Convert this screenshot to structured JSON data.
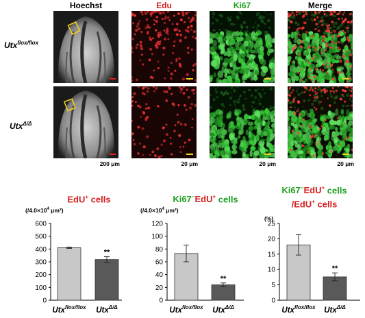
{
  "figure": {
    "columns": [
      "Hoechst",
      "Edu",
      "Ki67",
      "Merge"
    ],
    "column_colors": [
      "#000000",
      "#d62020",
      "#1fa01f",
      "#000000"
    ],
    "row_labels": [
      {
        "base": "Utx",
        "sup": "flox/flox"
      },
      {
        "base": "Utx",
        "sup": "Δ/Δ"
      }
    ],
    "scale_labels": [
      "200 μm",
      "20 μm",
      "20 μm",
      "20 μm"
    ]
  },
  "chart_data": [
    {
      "type": "bar",
      "title": {
        "prefix": "EdU",
        "sup": "+",
        "suffix": " cells"
      },
      "ylabel": {
        "text": "(/4.0×10",
        "sup": "4",
        "tail": " μm²)"
      },
      "categories": [
        {
          "base": "Utx",
          "sup": "flox/flox"
        },
        {
          "base": "Utx",
          "sup": "Δ/Δ"
        }
      ],
      "values": [
        410,
        318
      ],
      "errors": [
        5,
        22
      ],
      "ylim": [
        0,
        600
      ],
      "yticks": [
        0,
        100,
        200,
        300,
        400,
        500,
        600
      ],
      "significance": [
        "",
        "**"
      ]
    },
    {
      "type": "bar",
      "title": {
        "prefix": "Ki67",
        "sup": "−",
        "mid": "EdU",
        "sup2": "+",
        "suffix": " cells"
      },
      "ylabel": {
        "text": "(/4.0×10",
        "sup": "4",
        "tail": " μm²)"
      },
      "categories": [
        {
          "base": "Utx",
          "sup": "flox/flox"
        },
        {
          "base": "Utx",
          "sup": "Δ/Δ"
        }
      ],
      "values": [
        73,
        24
      ],
      "errors": [
        13,
        3
      ],
      "ylim": [
        0,
        120
      ],
      "yticks": [
        0,
        20,
        40,
        60,
        80,
        100,
        120
      ],
      "significance": [
        "",
        "**"
      ]
    },
    {
      "type": "bar",
      "title": {
        "line1_prefix": "Ki67",
        "line1_sup": "−",
        "line1_mid": "EdU",
        "line1_sup2": "+",
        "line1_suffix": " cells",
        "line2_prefix": "/EdU",
        "line2_sup": "+",
        "line2_suffix": " cells"
      },
      "ylabel": {
        "text": "(%)"
      },
      "categories": [
        {
          "base": "Utx",
          "sup": "flox/flox"
        },
        {
          "base": "Utx",
          "sup": "Δ/Δ"
        }
      ],
      "values": [
        18,
        7.6
      ],
      "errors": [
        3.3,
        1.3
      ],
      "ylim": [
        0,
        25
      ],
      "yticks": [
        0,
        5,
        10,
        15,
        20,
        25
      ],
      "significance": [
        "",
        "**"
      ]
    }
  ],
  "colors": {
    "red": "#d62020",
    "green": "#1fa01f",
    "bar_control": "#c8c8c8",
    "bar_mutant": "#595959"
  }
}
